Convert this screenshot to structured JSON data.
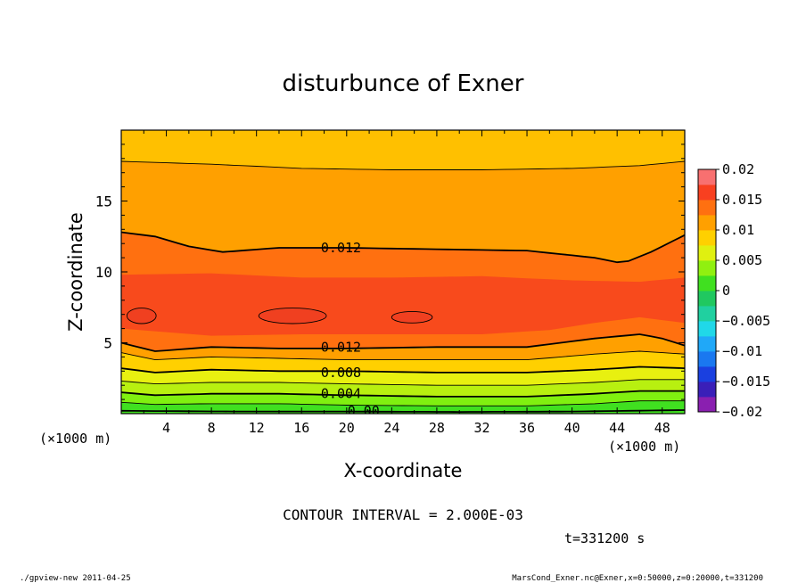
{
  "chart_data": {
    "type": "heatmap",
    "title": "disturbunce of Exner",
    "xlabel": "X-coordinate",
    "ylabel": "Z-coordinate",
    "x_unit": "(×1000 m)",
    "y_unit": "(×1000 m)",
    "xlim": [
      0,
      50
    ],
    "ylim": [
      0,
      20
    ],
    "x_ticks": [
      4,
      8,
      12,
      16,
      20,
      24,
      28,
      32,
      36,
      40,
      44,
      48
    ],
    "y_ticks": [
      5,
      10,
      15
    ],
    "colorbar": {
      "min": -0.02,
      "max": 0.02,
      "tick_labels": [
        "0.02",
        "0.015",
        "0.01",
        "0.005",
        "0",
        "−0.005",
        "−0.01",
        "−0.015",
        "−0.02"
      ],
      "tick_values": [
        0.02,
        0.015,
        0.01,
        0.005,
        0,
        -0.005,
        -0.01,
        -0.015,
        -0.02
      ],
      "colors": [
        "#8a1fb0",
        "#3a1fb8",
        "#1a40e0",
        "#1a78f0",
        "#20a8f8",
        "#20d8e8",
        "#20d0a0",
        "#20c860",
        "#40e020",
        "#90f010",
        "#e0f010",
        "#ffd000",
        "#ffa000",
        "#ff7010",
        "#f84020",
        "#f87070"
      ]
    },
    "contour_interval": "2.000E-03",
    "contour_levels": [
      0.0,
      0.002,
      0.004,
      0.006,
      0.008,
      0.01,
      0.012,
      0.014
    ],
    "contour_labels": [
      {
        "text": "0.012",
        "x": 19.5,
        "z": 11.7
      },
      {
        "text": "0.012",
        "x": 19.5,
        "z": 4.7
      },
      {
        "text": "0.008",
        "x": 19.5,
        "z": 2.9
      },
      {
        "text": "0.004",
        "x": 19.5,
        "z": 1.4
      },
      {
        "text": "0.00",
        "x": 21.5,
        "z": 0.2
      }
    ],
    "maxima_regions": [
      {
        "x": 1.8,
        "z": 6.9
      },
      {
        "x": 15.2,
        "z": 6.9
      },
      {
        "x": 25.8,
        "z": 6.8
      }
    ]
  },
  "annotations": {
    "contour_interval_text": "CONTOUR INTERVAL = 2.000E-03",
    "time_text": "t=331200  s",
    "footer_left": "./gpview-new   2011-04-25",
    "footer_right": "MarsCond_Exner.nc@Exner,x=0:50000,z=0:20000,t=331200"
  }
}
